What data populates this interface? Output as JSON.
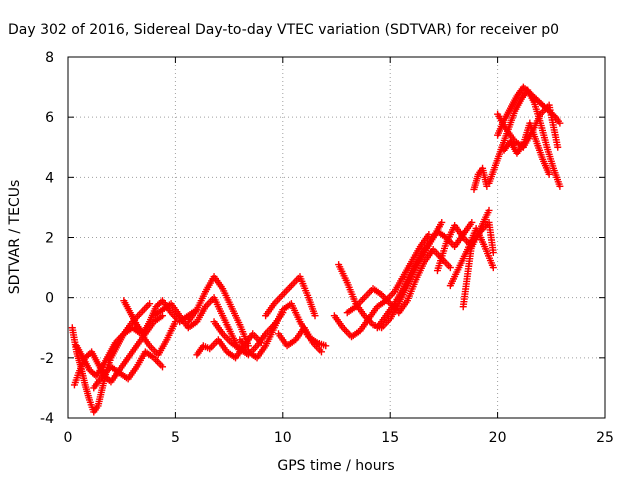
{
  "chart_data": {
    "type": "scatter",
    "title": "Day 302 of 2016, Sidereal Day-to-day VTEC variation (SDTVAR) for receiver p0",
    "xlabel": "GPS time / hours",
    "ylabel": "SDTVAR / TECUs",
    "xlim": [
      0,
      25
    ],
    "ylim": [
      -4,
      8
    ],
    "xticks": [
      "0",
      "5",
      "10",
      "15",
      "20",
      "25"
    ],
    "yticks": [
      "-4",
      "-2",
      "0",
      "2",
      "4",
      "6",
      "8"
    ],
    "grid": true,
    "marker": "plus",
    "color": "#ff0000",
    "series": [
      {
        "x": [
          0.2,
          0.4,
          0.6,
          0.8,
          1.0,
          1.2,
          1.4,
          1.6,
          1.8,
          2.0,
          2.3,
          2.6,
          3.0,
          3.4,
          3.8
        ],
        "y": [
          -1.0,
          -1.8,
          -2.3,
          -2.9,
          -3.4,
          -3.8,
          -3.6,
          -3.0,
          -2.4,
          -2.0,
          -1.6,
          -1.2,
          -0.8,
          -0.5,
          -0.2
        ]
      },
      {
        "x": [
          0.3,
          0.5,
          0.8,
          1.1,
          1.4,
          1.7,
          2.0,
          2.4,
          2.8,
          3.2,
          3.6,
          4.0,
          4.4
        ],
        "y": [
          -2.9,
          -2.5,
          -2.0,
          -1.8,
          -2.2,
          -2.6,
          -2.8,
          -2.4,
          -2.0,
          -1.6,
          -1.2,
          -0.8,
          -0.6
        ]
      },
      {
        "x": [
          0.4,
          0.7,
          1.0,
          1.3,
          1.6,
          1.9,
          2.2,
          2.6,
          3.0,
          3.4,
          3.8,
          4.2,
          4.6,
          5.0
        ],
        "y": [
          -1.6,
          -2.0,
          -2.4,
          -2.6,
          -2.3,
          -1.9,
          -1.5,
          -1.2,
          -1.0,
          -1.2,
          -1.6,
          -1.9,
          -1.4,
          -0.8
        ]
      },
      {
        "x": [
          1.2,
          1.6,
          2.0,
          2.4,
          2.8,
          3.2,
          3.6,
          4.0,
          4.4
        ],
        "y": [
          -3.0,
          -2.6,
          -2.3,
          -2.5,
          -2.7,
          -2.3,
          -1.8,
          -2.0,
          -2.3
        ]
      },
      {
        "x": [
          2.6,
          2.9,
          3.2,
          3.5,
          3.8,
          4.1,
          4.4,
          4.8,
          5.2,
          5.6,
          6.0
        ],
        "y": [
          -0.1,
          -0.5,
          -0.9,
          -1.2,
          -0.8,
          -0.3,
          -0.1,
          -0.5,
          -0.8,
          -0.6,
          -0.4
        ]
      },
      {
        "x": [
          4.0,
          4.4,
          4.8,
          5.2,
          5.6,
          6.0,
          6.4,
          6.8,
          7.2,
          7.6,
          8.0
        ],
        "y": [
          -0.6,
          -0.4,
          -0.2,
          -0.6,
          -1.0,
          -0.8,
          -0.3,
          0.0,
          -0.6,
          -1.2,
          -1.8
        ]
      },
      {
        "x": [
          5.6,
          6.0,
          6.4,
          6.8,
          7.2,
          7.6,
          8.0,
          8.4
        ],
        "y": [
          -0.8,
          -0.4,
          0.2,
          0.7,
          0.3,
          -0.3,
          -0.9,
          -1.6
        ]
      },
      {
        "x": [
          6.0,
          6.3,
          6.6,
          7.0,
          7.4,
          7.8,
          8.2,
          8.6,
          9.0
        ],
        "y": [
          -1.9,
          -1.6,
          -1.7,
          -1.4,
          -1.8,
          -2.0,
          -1.6,
          -1.2,
          -1.5
        ]
      },
      {
        "x": [
          6.8,
          7.2,
          7.6,
          8.0,
          8.4,
          8.8,
          9.2,
          9.6,
          10.0
        ],
        "y": [
          -0.8,
          -1.2,
          -1.5,
          -1.7,
          -1.9,
          -1.6,
          -1.2,
          -0.9,
          -0.5
        ]
      },
      {
        "x": [
          8.0,
          8.4,
          8.8,
          9.2,
          9.6,
          10.0,
          10.4,
          10.8,
          11.2,
          11.6,
          12.0
        ],
        "y": [
          -1.4,
          -1.8,
          -2.0,
          -1.6,
          -1.0,
          -0.4,
          -0.2,
          -0.8,
          -1.3,
          -1.5,
          -1.6
        ]
      },
      {
        "x": [
          9.2,
          9.6,
          10.0,
          10.4,
          10.8,
          11.2,
          11.5
        ],
        "y": [
          -0.6,
          -0.2,
          0.1,
          0.4,
          0.7,
          0.0,
          -0.6
        ]
      },
      {
        "x": [
          9.8,
          10.2,
          10.6,
          11.0,
          11.4,
          11.8
        ],
        "y": [
          -1.2,
          -1.6,
          -1.4,
          -1.0,
          -1.5,
          -1.8
        ]
      },
      {
        "x": [
          12.4,
          12.8,
          13.2,
          13.6,
          14.0,
          14.4,
          14.8,
          15.2,
          15.6,
          16.0,
          16.4,
          16.8
        ],
        "y": [
          -0.6,
          -1.0,
          -1.3,
          -1.1,
          -0.7,
          -0.3,
          -0.1,
          0.2,
          0.7,
          1.2,
          1.7,
          2.1
        ]
      },
      {
        "x": [
          12.6,
          13.0,
          13.4,
          13.8,
          14.2,
          14.6,
          15.0,
          15.4,
          15.8,
          16.2,
          16.6,
          17.0,
          17.4
        ],
        "y": [
          1.1,
          0.5,
          -0.2,
          -0.6,
          -0.9,
          -1.0,
          -0.7,
          -0.2,
          0.4,
          1.0,
          1.5,
          2.0,
          2.5
        ]
      },
      {
        "x": [
          13.0,
          13.4,
          13.8,
          14.2,
          14.6,
          15.0,
          15.4,
          15.8,
          16.2,
          16.6,
          17.0,
          17.4,
          17.8
        ],
        "y": [
          -0.5,
          -0.3,
          0.0,
          0.3,
          0.1,
          -0.2,
          -0.5,
          -0.1,
          0.6,
          1.2,
          1.6,
          1.3,
          1.0
        ]
      },
      {
        "x": [
          14.4,
          14.8,
          15.2,
          15.6,
          16.0,
          16.4,
          16.8,
          17.2,
          17.6,
          18.0,
          18.4,
          18.8
        ],
        "y": [
          -1.0,
          -0.6,
          -0.2,
          0.3,
          0.9,
          1.4,
          1.8,
          2.2,
          2.0,
          1.7,
          2.1,
          2.5
        ]
      },
      {
        "x": [
          17.2,
          17.6,
          18.0,
          18.4,
          18.8,
          19.2,
          19.6
        ],
        "y": [
          0.9,
          1.8,
          2.4,
          2.0,
          1.7,
          2.3,
          2.9
        ]
      },
      {
        "x": [
          17.8,
          18.2,
          18.6,
          19.0,
          19.4,
          19.8
        ],
        "y": [
          0.4,
          1.0,
          1.6,
          2.3,
          1.7,
          1.0
        ]
      },
      {
        "x": [
          18.4,
          18.8,
          19.2,
          19.6,
          19.8
        ],
        "y": [
          -0.3,
          1.8,
          2.2,
          2.5,
          1.5
        ]
      },
      {
        "x": [
          18.9,
          19.1,
          19.3,
          19.5
        ],
        "y": [
          3.6,
          4.1,
          4.3,
          3.7
        ]
      },
      {
        "x": [
          19.6,
          19.9,
          20.2,
          20.5,
          20.8,
          21.1,
          21.4,
          21.7,
          22.0,
          22.3,
          22.6,
          22.9
        ],
        "y": [
          3.8,
          4.4,
          5.0,
          5.6,
          6.2,
          6.6,
          6.9,
          6.5,
          5.8,
          5.0,
          4.3,
          3.7
        ]
      },
      {
        "x": [
          20.0,
          20.3,
          20.6,
          20.9,
          21.2,
          21.5,
          21.8,
          22.1,
          22.4,
          22.7,
          22.9
        ],
        "y": [
          5.4,
          5.9,
          6.3,
          6.7,
          7.0,
          6.8,
          6.6,
          6.4,
          6.2,
          6.0,
          5.8
        ]
      },
      {
        "x": [
          20.0,
          20.4,
          20.8,
          21.2,
          21.6,
          22.0,
          22.4,
          22.8
        ],
        "y": [
          6.1,
          5.6,
          5.2,
          5.0,
          5.5,
          6.1,
          6.4,
          5.0
        ]
      },
      {
        "x": [
          20.3,
          20.6,
          20.9,
          21.2,
          21.5,
          21.8,
          22.1,
          22.4
        ],
        "y": [
          4.9,
          5.2,
          4.8,
          5.1,
          5.8,
          5.2,
          4.6,
          4.1
        ]
      }
    ]
  }
}
